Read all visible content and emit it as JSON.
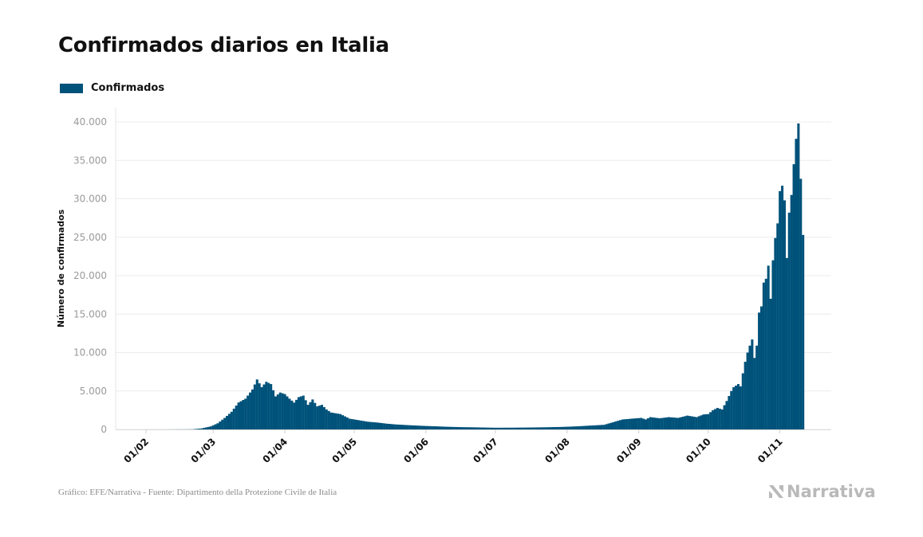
{
  "title": "Confirmados diarios en Italia",
  "legend": {
    "label": "Confirmados",
    "color": "#00527a"
  },
  "footer": {
    "source": "Gráfico: EFE/Narrativa - Fuente: Dipartimento della Protezione Civile de Italia"
  },
  "brand": {
    "name": "Narrativa",
    "icon": "narrativa-logo-icon"
  },
  "chart_data": {
    "type": "bar",
    "ylabel": "Número de confirmados",
    "xlabel": "",
    "ylim": [
      0,
      40000
    ],
    "yticks": [
      0,
      5000,
      10000,
      15000,
      20000,
      25000,
      30000,
      35000,
      40000
    ],
    "ytick_labels": [
      "0",
      "5.000",
      "10.000",
      "15.000",
      "20.000",
      "25.000",
      "30.000",
      "35.000",
      "40.000"
    ],
    "xticks": [
      {
        "label": "01/02",
        "day": 0
      },
      {
        "label": "01/03",
        "day": 29
      },
      {
        "label": "01/04",
        "day": 60
      },
      {
        "label": "01/05",
        "day": 90
      },
      {
        "label": "01/06",
        "day": 121
      },
      {
        "label": "01/07",
        "day": 151
      },
      {
        "label": "01/08",
        "day": 182
      },
      {
        "label": "01/09",
        "day": 213
      },
      {
        "label": "01/10",
        "day": 243
      },
      {
        "label": "01/11",
        "day": 274
      }
    ],
    "grid": true,
    "series": [
      {
        "name": "Confirmados",
        "first_date": "01/02",
        "keypoints": [
          [
            0,
            3
          ],
          [
            8,
            3
          ],
          [
            20,
            20
          ],
          [
            24,
            130
          ],
          [
            28,
            400
          ],
          [
            31,
            800
          ],
          [
            34,
            1500
          ],
          [
            37,
            2300
          ],
          [
            40,
            3500
          ],
          [
            43,
            4000
          ],
          [
            46,
            5200
          ],
          [
            48,
            6500
          ],
          [
            50,
            5500
          ],
          [
            52,
            6200
          ],
          [
            54,
            5900
          ],
          [
            56,
            4300
          ],
          [
            58,
            4800
          ],
          [
            60,
            4600
          ],
          [
            62,
            4000
          ],
          [
            64,
            3500
          ],
          [
            66,
            4200
          ],
          [
            68,
            4400
          ],
          [
            70,
            3200
          ],
          [
            72,
            3900
          ],
          [
            74,
            3000
          ],
          [
            76,
            3200
          ],
          [
            78,
            2600
          ],
          [
            80,
            2200
          ],
          [
            84,
            2000
          ],
          [
            88,
            1400
          ],
          [
            92,
            1200
          ],
          [
            96,
            1000
          ],
          [
            100,
            900
          ],
          [
            104,
            750
          ],
          [
            108,
            650
          ],
          [
            112,
            580
          ],
          [
            116,
            520
          ],
          [
            121,
            450
          ],
          [
            126,
            400
          ],
          [
            130,
            350
          ],
          [
            136,
            300
          ],
          [
            141,
            280
          ],
          [
            146,
            250
          ],
          [
            151,
            220
          ],
          [
            158,
            230
          ],
          [
            165,
            250
          ],
          [
            172,
            280
          ],
          [
            180,
            330
          ],
          [
            186,
            400
          ],
          [
            192,
            500
          ],
          [
            198,
            600
          ],
          [
            202,
            950
          ],
          [
            206,
            1300
          ],
          [
            210,
            1400
          ],
          [
            214,
            1500
          ],
          [
            216,
            1300
          ],
          [
            218,
            1600
          ],
          [
            222,
            1450
          ],
          [
            226,
            1600
          ],
          [
            230,
            1500
          ],
          [
            234,
            1800
          ],
          [
            238,
            1600
          ],
          [
            241,
            1950
          ],
          [
            243,
            2000
          ],
          [
            245,
            2500
          ],
          [
            247,
            2800
          ],
          [
            249,
            2600
          ],
          [
            251,
            3700
          ],
          [
            253,
            5000
          ],
          [
            254,
            5500
          ],
          [
            256,
            5900
          ],
          [
            257,
            5600
          ],
          [
            258,
            7300
          ],
          [
            259,
            8800
          ],
          [
            260,
            10000
          ],
          [
            261,
            10900
          ],
          [
            262,
            11700
          ],
          [
            263,
            9300
          ],
          [
            264,
            10900
          ],
          [
            265,
            15200
          ],
          [
            266,
            16000
          ],
          [
            267,
            19100
          ],
          [
            268,
            19600
          ],
          [
            269,
            21300
          ],
          [
            270,
            17000
          ],
          [
            271,
            22000
          ],
          [
            272,
            24900
          ],
          [
            273,
            26800
          ],
          [
            274,
            31000
          ],
          [
            275,
            31700
          ],
          [
            276,
            29800
          ],
          [
            277,
            22300
          ],
          [
            278,
            28200
          ],
          [
            279,
            30500
          ],
          [
            280,
            34500
          ],
          [
            281,
            37800
          ],
          [
            282,
            39800
          ],
          [
            283,
            32600
          ],
          [
            284,
            25300
          ]
        ]
      }
    ]
  }
}
